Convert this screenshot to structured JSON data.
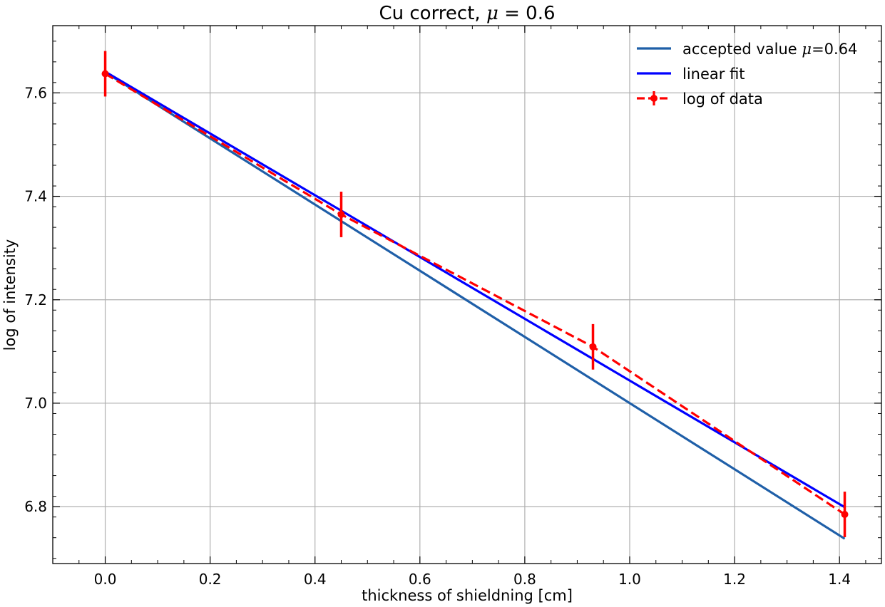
{
  "chart_data": {
    "type": "line",
    "title": {
      "prefix": "Cu correct, ",
      "symbol": "μ",
      "suffix": " = 0.6"
    },
    "xlabel": "thickness of shieldning [cm]",
    "ylabel": "log of intensity",
    "xlim": [
      -0.1,
      1.48
    ],
    "ylim": [
      6.69,
      7.73
    ],
    "xticks": [
      0.0,
      0.2,
      0.4,
      0.6,
      0.8,
      1.0,
      1.2,
      1.4
    ],
    "xtick_labels": [
      "0.0",
      "0.2",
      "0.4",
      "0.6",
      "0.8",
      "1.0",
      "1.2",
      "1.4"
    ],
    "yticks": [
      6.8,
      7.0,
      7.2,
      7.4,
      7.6
    ],
    "ytick_labels": [
      "6.8",
      "7.0",
      "7.2",
      "7.4",
      "7.6"
    ],
    "grid": true,
    "legend_position": "top-right",
    "series": [
      {
        "name_parts": [
          "accepted value ",
          "μ",
          "=0.64"
        ],
        "color": "#1f5fa8",
        "style": "solid",
        "x": [
          0.0,
          1.41
        ],
        "y": [
          7.64,
          6.738
        ]
      },
      {
        "name_parts": [
          "linear fit",
          "",
          ""
        ],
        "color": "#0000ff",
        "style": "solid",
        "x": [
          0.0,
          1.41
        ],
        "y": [
          7.641,
          6.799
        ]
      },
      {
        "name_parts": [
          "log of data",
          "",
          ""
        ],
        "color": "#ff0000",
        "style": "dashed",
        "markers": true,
        "x": [
          0.0,
          0.45,
          0.93,
          1.41
        ],
        "y": [
          7.637,
          7.365,
          7.109,
          6.785
        ],
        "yerr": [
          0.044,
          0.044,
          0.044,
          0.044
        ]
      }
    ]
  }
}
